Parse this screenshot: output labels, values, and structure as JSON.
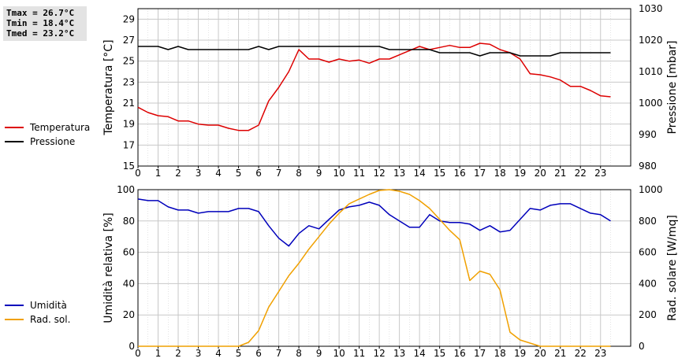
{
  "stats": {
    "tmax": "Tmax = 26.7°C",
    "tmin": "Tmin = 18.4°C",
    "tmed": "Tmed = 23.2°C"
  },
  "colors": {
    "temperature": "#dd0000",
    "pressure": "#000000",
    "humidity": "#0000bb",
    "solar": "#f0a000",
    "grid": "#c8c8c8"
  },
  "chart_data": [
    {
      "type": "line",
      "x_ticks": [
        "0",
        "1",
        "2",
        "3",
        "4",
        "5",
        "6",
        "7",
        "8",
        "9",
        "10",
        "11",
        "12",
        "13",
        "14",
        "15",
        "16",
        "17",
        "18",
        "19",
        "20",
        "21",
        "22",
        "23"
      ],
      "xlim": [
        0,
        24.5
      ],
      "ylabel": "Temperatura [°C]",
      "ylim": [
        15,
        30
      ],
      "y_ticks": [
        15,
        17,
        19,
        21,
        23,
        25,
        27,
        29
      ],
      "y2label": "Pressione [mbar]",
      "y2lim": [
        980,
        1030
      ],
      "y2_ticks": [
        980,
        990,
        1000,
        1010,
        1020,
        1030
      ],
      "grid": true,
      "legend_position": "left",
      "series": [
        {
          "name": "Temperatura",
          "axis": "left",
          "x": [
            0,
            0.5,
            1,
            1.5,
            2,
            2.5,
            3,
            3.5,
            4,
            4.5,
            5,
            5.5,
            6,
            6.5,
            7,
            7.5,
            8,
            8.5,
            9,
            9.5,
            10,
            10.5,
            11,
            11.5,
            12,
            12.5,
            13,
            13.5,
            14,
            14.5,
            15,
            15.5,
            16,
            16.5,
            17,
            17.5,
            18,
            18.5,
            19,
            19.5,
            20,
            20.5,
            21,
            21.5,
            22,
            22.5,
            23,
            23.5
          ],
          "values": [
            20.6,
            20.1,
            19.8,
            19.7,
            19.3,
            19.3,
            19.0,
            18.9,
            18.9,
            18.6,
            18.4,
            18.4,
            18.9,
            21.2,
            22.5,
            24.0,
            26.1,
            25.2,
            25.2,
            24.9,
            25.2,
            25.0,
            25.1,
            24.8,
            25.2,
            25.2,
            25.6,
            26.0,
            26.4,
            26.1,
            26.3,
            26.5,
            26.3,
            26.3,
            26.7,
            26.6,
            26.1,
            25.8,
            25.2,
            23.8,
            23.7,
            23.5,
            23.2,
            22.6,
            22.6,
            22.2,
            21.7,
            21.6
          ]
        },
        {
          "name": "Pressione",
          "axis": "right",
          "x": [
            0,
            0.5,
            1,
            1.5,
            2,
            2.5,
            3,
            3.5,
            4,
            4.5,
            5,
            5.5,
            6,
            6.5,
            7,
            7.5,
            8,
            8.5,
            9,
            9.5,
            10,
            10.5,
            11,
            11.5,
            12,
            12.5,
            13,
            13.5,
            14,
            14.5,
            15,
            15.5,
            16,
            16.5,
            17,
            17.5,
            18,
            18.5,
            19,
            19.5,
            20,
            20.5,
            21,
            21.5,
            22,
            22.5,
            23,
            23.5
          ],
          "values": [
            1018,
            1018,
            1018,
            1017,
            1018,
            1017,
            1017,
            1017,
            1017,
            1017,
            1017,
            1017,
            1018,
            1017,
            1018,
            1018,
            1018,
            1018,
            1018,
            1018,
            1018,
            1018,
            1018,
            1018,
            1018,
            1017,
            1017,
            1017,
            1017,
            1017,
            1016,
            1016,
            1016,
            1016,
            1015,
            1016,
            1016,
            1016,
            1015,
            1015,
            1015,
            1015,
            1016,
            1016,
            1016,
            1016,
            1016,
            1016
          ]
        }
      ]
    },
    {
      "type": "line",
      "x_ticks": [
        "0",
        "1",
        "2",
        "3",
        "4",
        "5",
        "6",
        "7",
        "8",
        "9",
        "10",
        "11",
        "12",
        "13",
        "14",
        "15",
        "16",
        "17",
        "18",
        "19",
        "20",
        "21",
        "22",
        "23"
      ],
      "xlim": [
        0,
        24.5
      ],
      "ylabel": "Umidità relativa [%]",
      "ylim": [
        0,
        100
      ],
      "y_ticks": [
        0,
        20,
        40,
        60,
        80,
        100
      ],
      "y2label": "Rad. solare [W/mq]",
      "y2lim": [
        0,
        1000
      ],
      "y2_ticks": [
        0,
        200,
        400,
        600,
        800,
        1000
      ],
      "grid": true,
      "legend_position": "left",
      "series": [
        {
          "name": "Umidità",
          "axis": "left",
          "x": [
            0,
            0.5,
            1,
            1.5,
            2,
            2.5,
            3,
            3.5,
            4,
            4.5,
            5,
            5.5,
            6,
            6.5,
            7,
            7.5,
            8,
            8.5,
            9,
            9.5,
            10,
            10.5,
            11,
            11.5,
            12,
            12.5,
            13,
            13.5,
            14,
            14.5,
            15,
            15.5,
            16,
            16.5,
            17,
            17.5,
            18,
            18.5,
            19,
            19.5,
            20,
            20.5,
            21,
            21.5,
            22,
            22.5,
            23,
            23.5
          ],
          "values": [
            94,
            93,
            93,
            89,
            87,
            87,
            85,
            86,
            86,
            86,
            88,
            88,
            86,
            77,
            69,
            64,
            72,
            77,
            75,
            81,
            87,
            89,
            90,
            92,
            90,
            84,
            80,
            76,
            76,
            84,
            80,
            79,
            79,
            78,
            74,
            77,
            73,
            74,
            81,
            88,
            87,
            90,
            91,
            91,
            88,
            85,
            84,
            80
          ]
        },
        {
          "name": "Rad. sol.",
          "axis": "right",
          "x": [
            0,
            0.5,
            1,
            1.5,
            2,
            2.5,
            3,
            3.5,
            4,
            4.5,
            5,
            5.5,
            6,
            6.5,
            7,
            7.5,
            8,
            8.5,
            9,
            9.5,
            10,
            10.5,
            11,
            11.5,
            12,
            12.5,
            13,
            13.5,
            14,
            14.5,
            15,
            15.5,
            16,
            16.5,
            17,
            17.5,
            18,
            18.5,
            19,
            19.5,
            20,
            20.5,
            21,
            21.5,
            22,
            22.5,
            23,
            23.5
          ],
          "values": [
            0,
            0,
            0,
            0,
            0,
            0,
            0,
            0,
            0,
            0,
            0,
            25,
            100,
            250,
            350,
            450,
            530,
            620,
            700,
            780,
            850,
            910,
            940,
            970,
            995,
            1000,
            990,
            970,
            930,
            880,
            810,
            740,
            680,
            420,
            480,
            460,
            360,
            90,
            40,
            20,
            0,
            0,
            0,
            0,
            0,
            0,
            0,
            0
          ]
        }
      ]
    }
  ]
}
